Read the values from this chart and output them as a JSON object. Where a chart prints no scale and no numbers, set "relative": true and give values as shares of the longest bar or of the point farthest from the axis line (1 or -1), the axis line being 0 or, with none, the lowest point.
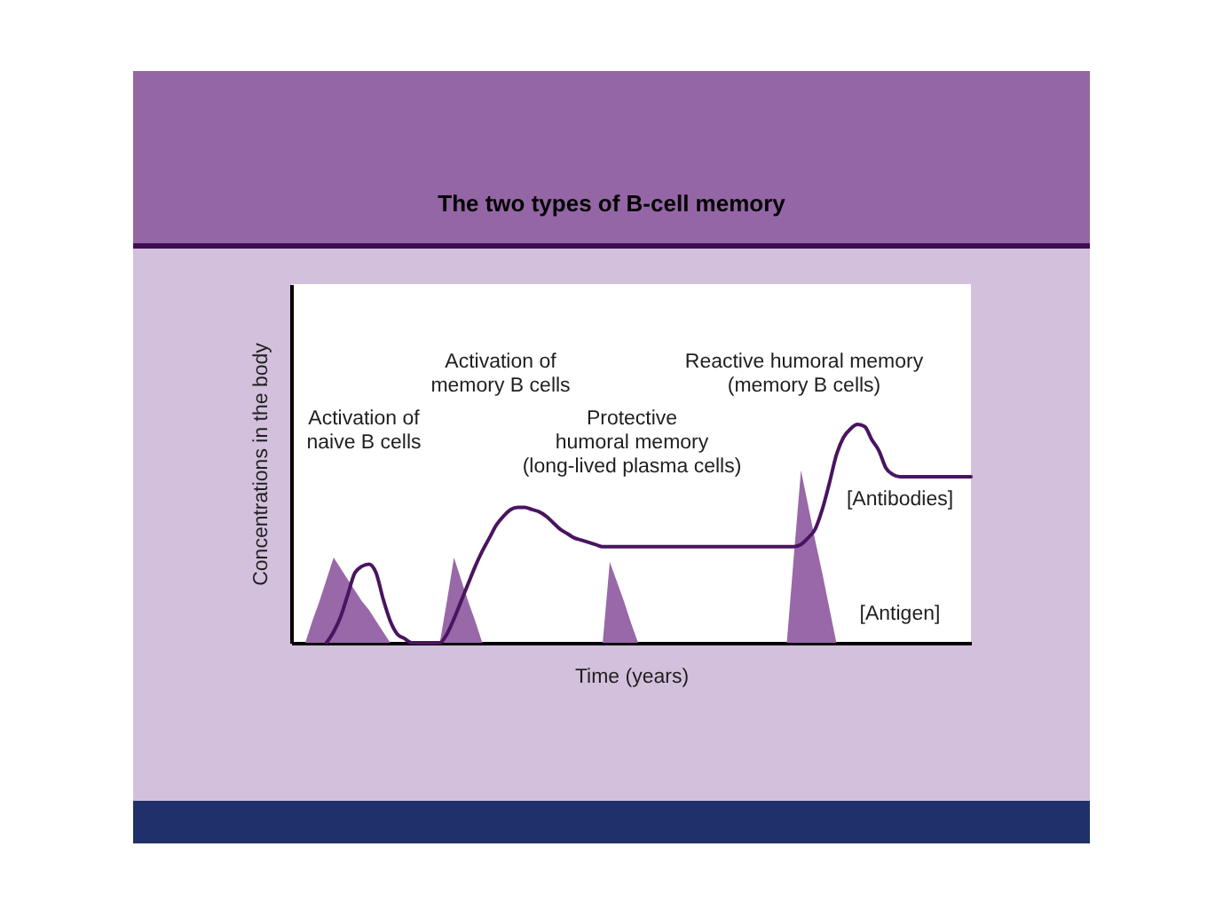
{
  "chart_data": {
    "type": "line",
    "title": "The two types of B-cell memory",
    "xlabel": "Time (years)",
    "ylabel": "Concentrations in the body",
    "relative": true,
    "tick_labels": false,
    "categories": [
      null,
      null,
      null,
      null,
      null,
      null,
      null,
      null,
      null,
      null,
      null,
      null,
      null,
      null,
      null,
      null,
      null,
      null,
      null,
      null,
      null,
      null,
      null,
      null,
      null,
      null,
      null,
      null,
      null,
      null,
      null,
      null,
      null,
      null,
      null,
      null,
      null,
      null,
      null,
      null,
      null,
      null,
      null,
      null,
      null,
      null,
      null,
      null,
      null,
      null,
      null,
      null,
      null,
      null,
      null,
      null,
      null,
      null,
      null,
      null,
      null,
      null,
      null,
      null,
      null,
      null,
      null,
      null,
      null,
      null,
      null,
      null,
      null,
      null,
      null,
      null,
      null,
      null,
      null,
      null,
      null,
      null,
      null,
      null,
      null,
      null,
      null,
      null,
      null,
      null,
      null,
      null,
      null,
      null,
      null,
      null,
      null
    ],
    "series": [
      {
        "name": "[Antigen]",
        "type": "area",
        "color": "#9868a8",
        "values": [
          0,
          0,
          0,
          0.1,
          0.19,
          0.29,
          0.39,
          0.34,
          0.29,
          0.24,
          0.19,
          0.15,
          0.1,
          0.05,
          0,
          0,
          0,
          0,
          0,
          0,
          0,
          0,
          0.19,
          0.39,
          0.29,
          0.19,
          0.1,
          0,
          0,
          0,
          0,
          0,
          0,
          0,
          0,
          0,
          0,
          0,
          0,
          0,
          0,
          0,
          0,
          0,
          0,
          0.37,
          0.28,
          0.19,
          0.09,
          0,
          0,
          0,
          0,
          0,
          0,
          0,
          0,
          0,
          0,
          0,
          0,
          0,
          0,
          0,
          0,
          0,
          0,
          0,
          0,
          0,
          0,
          0.4,
          0.79,
          0.63,
          0.47,
          0.32,
          0.16,
          0,
          0,
          0,
          0,
          0,
          0,
          0,
          0,
          0,
          0,
          0,
          0,
          0,
          0,
          0,
          0,
          0,
          0,
          0,
          0
        ]
      },
      {
        "name": "[Antibodies]",
        "type": "line",
        "color": "#4a1460",
        "values": [
          null,
          null,
          null,
          null,
          null,
          0,
          0.05,
          0.12,
          0.22,
          0.32,
          0.35,
          0.36,
          0.32,
          0.2,
          0.1,
          0.04,
          0.02,
          0,
          0,
          0,
          0,
          0,
          0.04,
          0.11,
          0.19,
          0.27,
          0.35,
          0.42,
          0.48,
          0.54,
          0.58,
          0.61,
          0.62,
          0.62,
          0.61,
          0.6,
          0.58,
          0.55,
          0.52,
          0.5,
          0.48,
          0.47,
          0.46,
          0.45,
          0.44,
          0.44,
          0.44,
          0.44,
          0.44,
          0.44,
          0.44,
          0.44,
          0.44,
          0.44,
          0.44,
          0.44,
          0.44,
          0.44,
          0.44,
          0.44,
          0.44,
          0.44,
          0.44,
          0.44,
          0.44,
          0.44,
          0.44,
          0.44,
          0.44,
          0.44,
          0.44,
          0.44,
          0.45,
          0.48,
          0.52,
          0.61,
          0.73,
          0.86,
          0.94,
          0.98,
          1.0,
          0.99,
          0.93,
          0.88,
          0.8,
          0.77,
          0.76,
          0.76,
          0.76,
          0.76,
          0.76,
          0.76,
          0.76,
          0.76,
          0.76,
          0.76,
          0.76
        ]
      }
    ],
    "annotations": [
      "Activation of\nnaive B cells",
      "Activation of\nmemory B cells",
      "Protective\nhumoral memory\n(long-lived plasma cells)",
      "Reactive humoral memory\n(memory B cells)"
    ]
  }
}
